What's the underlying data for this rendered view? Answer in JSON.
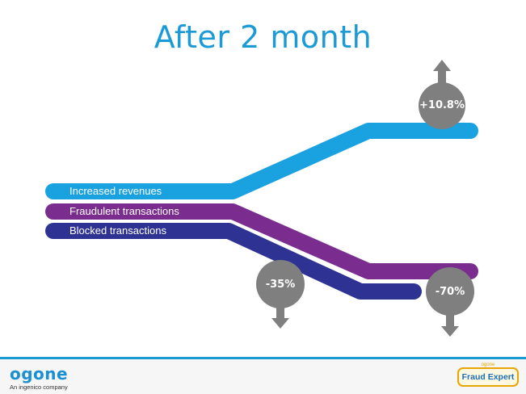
{
  "title": "After 2 month",
  "bands": [
    {
      "label": "Increased revenues",
      "color": "#1aa1e0"
    },
    {
      "label": "Fraudulent transactions",
      "color": "#7b2c8f"
    },
    {
      "label": "Blocked transactions",
      "color": "#2d3293"
    }
  ],
  "indicators": [
    {
      "label": "+10.8%",
      "direction": "up"
    },
    {
      "label": "-35%",
      "direction": "down"
    },
    {
      "label": "-70%",
      "direction": "down"
    }
  ],
  "bubble_color": "#7f7f7f",
  "accent_color": "#1a9ad6",
  "footer": {
    "logo": "ogone",
    "tagline": "An ingenico company",
    "badge_top": "ogone",
    "badge_main": "Fraud Expert"
  }
}
